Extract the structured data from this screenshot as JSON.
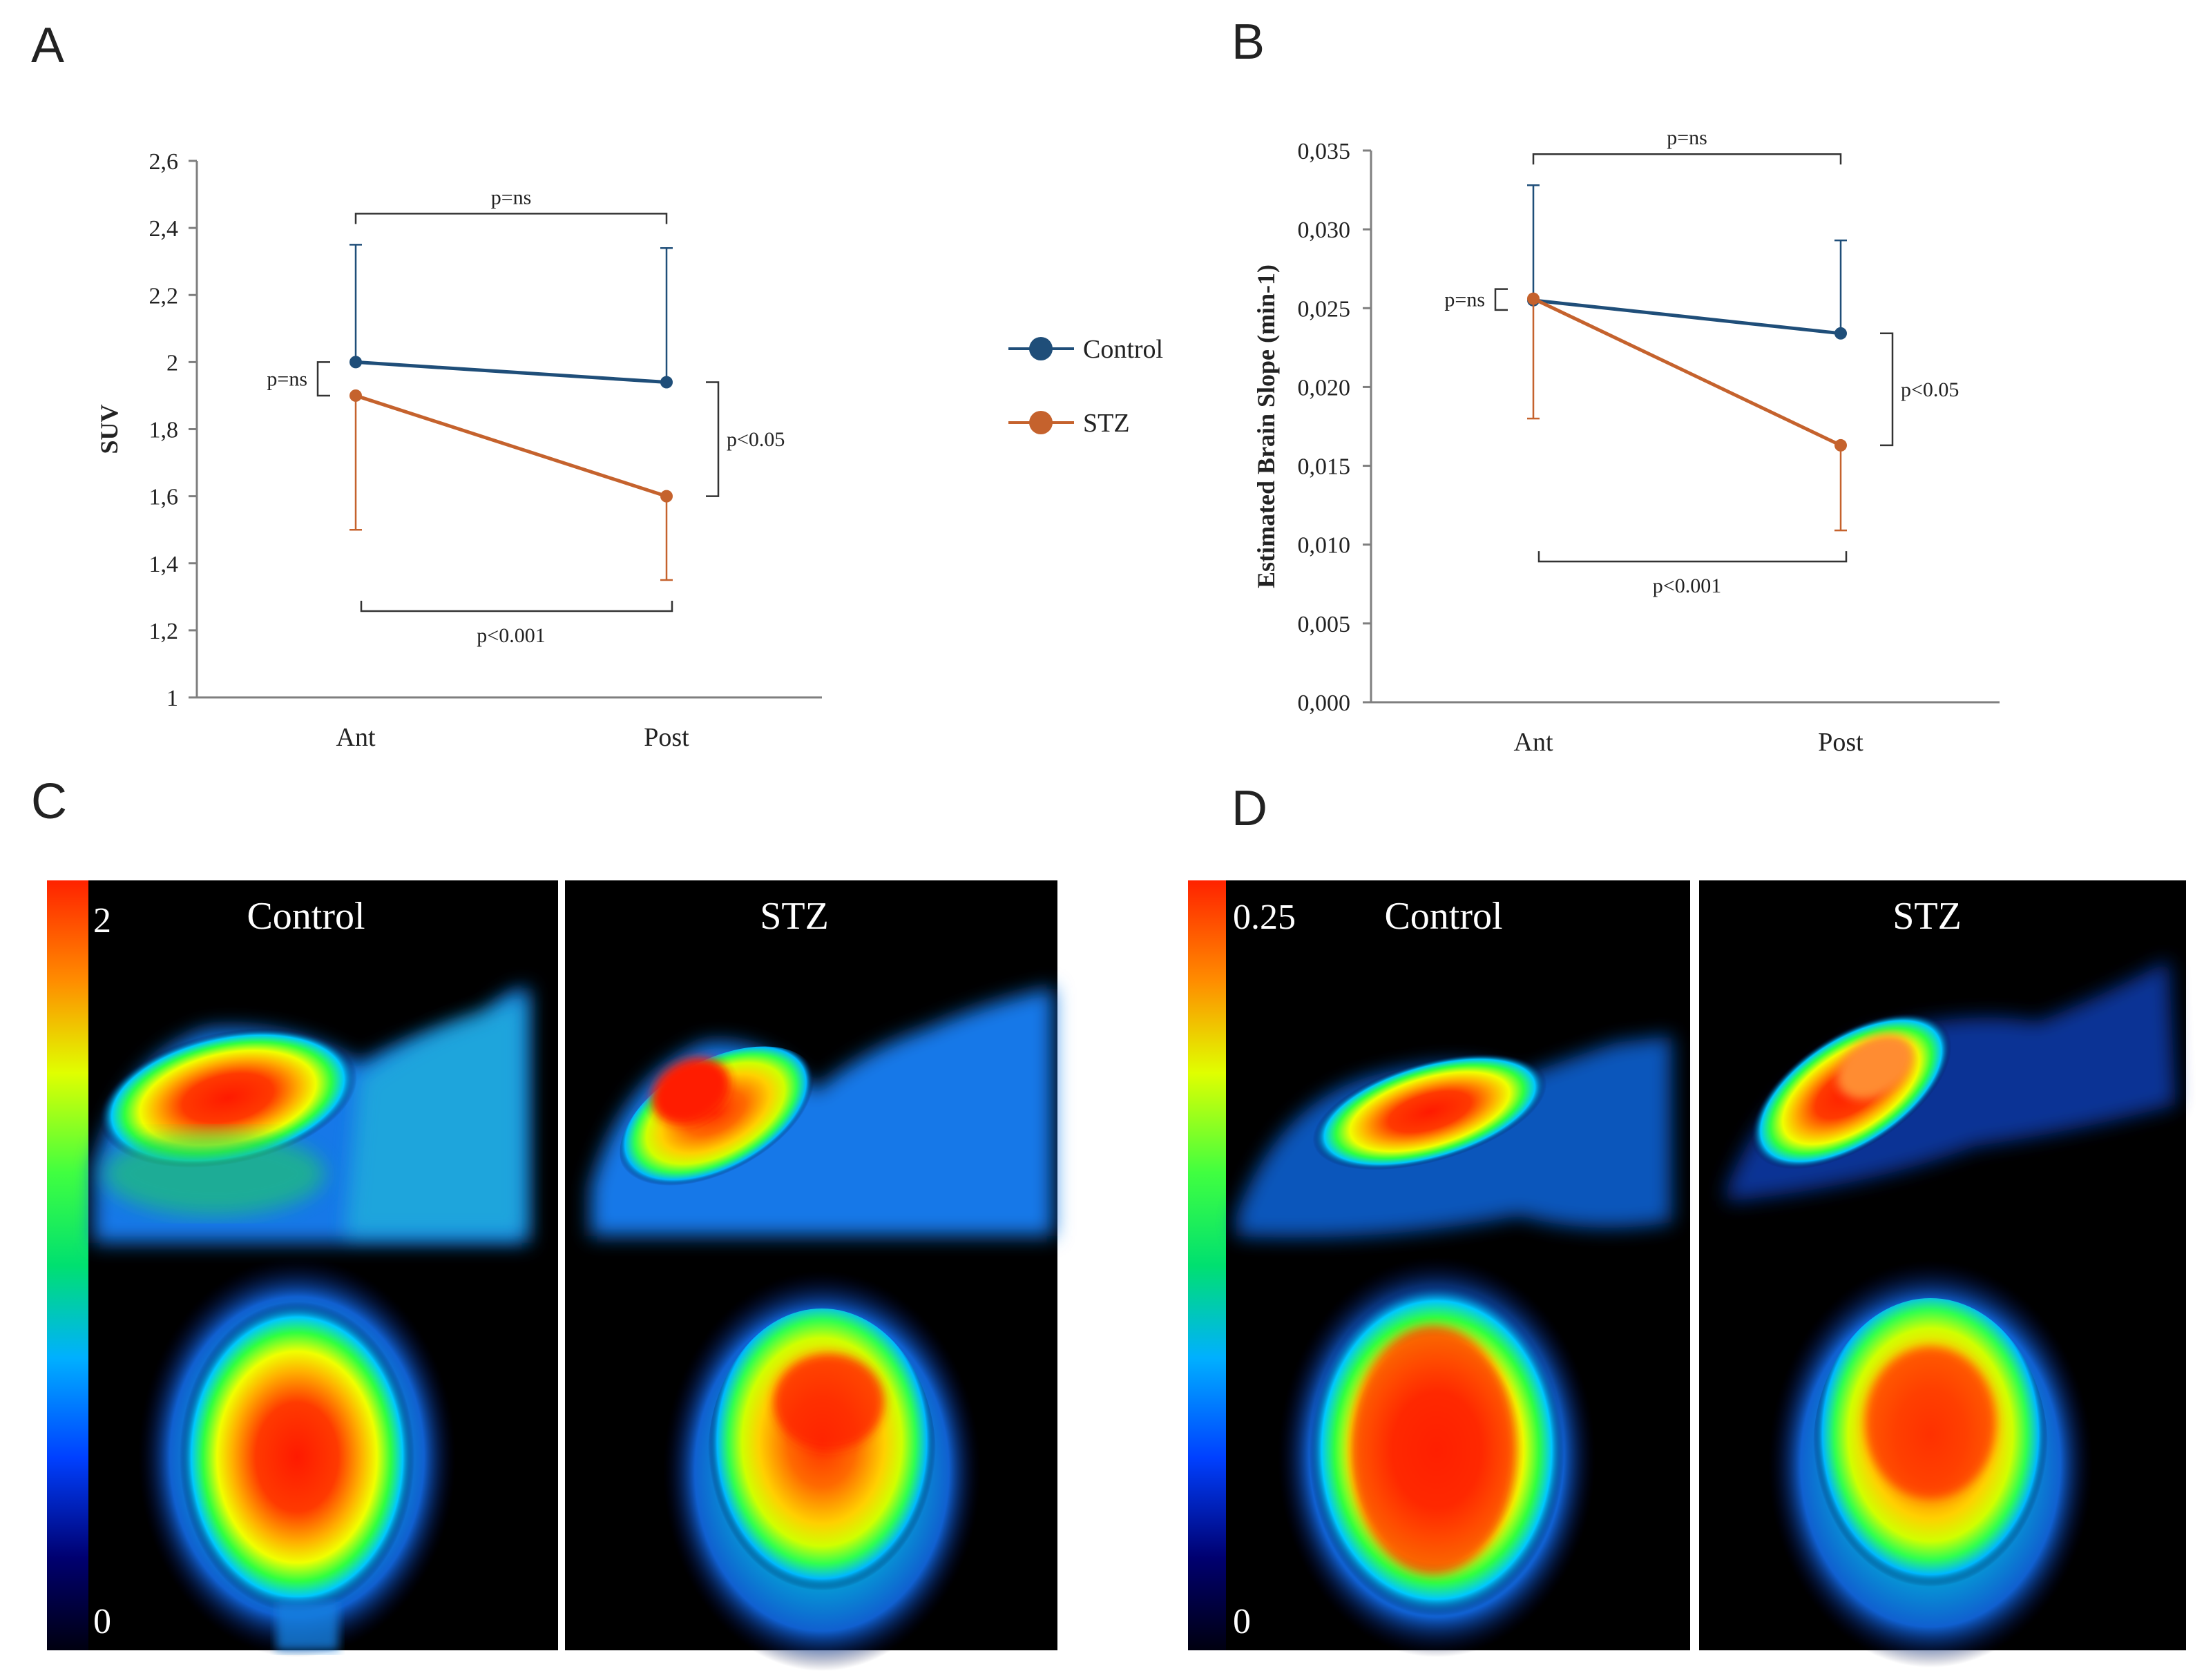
{
  "panels": {
    "A": "A",
    "B": "B",
    "C": "C",
    "D": "D"
  },
  "legend": {
    "control": "Control",
    "stz": "STZ"
  },
  "colors": {
    "control": "#1f4e79",
    "stz": "#c5622d",
    "axis": "#7f7f7f",
    "bracket": "#333333",
    "text": "#222222",
    "image_bg": "#000000"
  },
  "chart_data": [
    {
      "id": "A",
      "type": "line",
      "ylabel": "SUV",
      "xlabel": "",
      "categories": [
        "Ant",
        "Post"
      ],
      "ylim": [
        1,
        2.6
      ],
      "yticks": [
        "1",
        "1,2",
        "1,4",
        "1,6",
        "1,8",
        "2",
        "2,2",
        "2,4",
        "2,6"
      ],
      "ytick_values": [
        1,
        1.2,
        1.4,
        1.6,
        1.8,
        2,
        2.2,
        2.4,
        2.6
      ],
      "series": [
        {
          "name": "Control",
          "values": [
            2.0,
            1.94
          ],
          "err_up": [
            0.35,
            0.4
          ]
        },
        {
          "name": "STZ",
          "values": [
            1.9,
            1.6
          ],
          "err_down": [
            0.4,
            0.25
          ]
        }
      ],
      "annotations": {
        "top": "p=ns",
        "left": "p=ns",
        "right": "p<0.05",
        "bottom": "p<0.001"
      },
      "grid": false
    },
    {
      "id": "B",
      "type": "line",
      "ylabel": "Estimated Brain Slope (min-1)",
      "xlabel": "",
      "categories": [
        "Ant",
        "Post"
      ],
      "ylim": [
        0,
        0.035
      ],
      "yticks": [
        "0,000",
        "0,005",
        "0,010",
        "0,015",
        "0,020",
        "0,025",
        "0,030",
        "0,035"
      ],
      "ytick_values": [
        0,
        0.005,
        0.01,
        0.015,
        0.02,
        0.025,
        0.03,
        0.035
      ],
      "series": [
        {
          "name": "Control",
          "values": [
            0.0255,
            0.0234
          ],
          "err_up": [
            0.0073,
            0.0059
          ]
        },
        {
          "name": "STZ",
          "values": [
            0.0256,
            0.0163
          ],
          "err_down": [
            0.0076,
            0.0054
          ]
        }
      ],
      "annotations": {
        "top": "p=ns",
        "left": "p=ns",
        "right": "p<0.05",
        "bottom": "p<0.001"
      },
      "grid": false
    }
  ],
  "images": {
    "C": {
      "scale_max": "2",
      "scale_min": "0",
      "left_title": "Control",
      "right_title": "STZ"
    },
    "D": {
      "scale_max": "0.25",
      "scale_min": "0",
      "left_title": "Control",
      "right_title": "STZ"
    }
  }
}
